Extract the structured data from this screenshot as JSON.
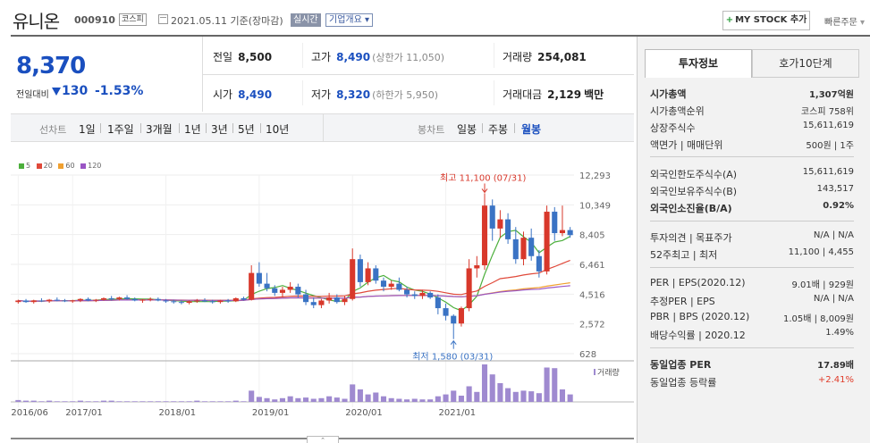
{
  "header": {
    "name": "유니온",
    "code": "000910",
    "market": "코스피",
    "date": "2021.05.11",
    "basis": "기준(장마감)",
    "realtime": "실시간",
    "overview": "기업개요",
    "mystock": "MY STOCK 추가",
    "quick_order": "빠른주문"
  },
  "price": {
    "current": "8,370",
    "change_label": "전일대비",
    "change_value": "130",
    "change_pct": "-1.53%"
  },
  "summary": {
    "prev_label": "전일",
    "prev": "8,500",
    "high_label": "고가",
    "high": "8,490",
    "high_limit": "(상한가 11,050)",
    "volume_label": "거래량",
    "volume": "254,081",
    "open_label": "시가",
    "open": "8,490",
    "low_label": "저가",
    "low": "8,320",
    "low_limit": "(하한가 5,950)",
    "amount_label": "거래대금",
    "amount": "2,129",
    "amount_unit": "백만"
  },
  "period": {
    "line_label": "선차트",
    "line_items": [
      "1일",
      "1주일",
      "3개월",
      "1년",
      "3년",
      "5년",
      "10년"
    ],
    "candle_label": "봉차트",
    "candle_items": [
      "일봉",
      "주봉",
      "월봉"
    ],
    "active": "월봉"
  },
  "chart_data": {
    "type": "candlestick",
    "interval": "monthly",
    "legend": [
      {
        "name": "5",
        "color": "#4caf3c"
      },
      {
        "name": "20",
        "color": "#e0493a"
      },
      {
        "name": "60",
        "color": "#f0a030"
      },
      {
        "name": "120",
        "color": "#9a55c4"
      }
    ],
    "y_ticks": [
      "12,293",
      "10,349",
      "8,405",
      "6,461",
      "4,516",
      "2,572",
      "628"
    ],
    "ylim": [
      628,
      12293
    ],
    "x_ticks": [
      "2016/06",
      "2017/01",
      "2018/01",
      "2019/01",
      "2020/01",
      "2021/01"
    ],
    "max_label": "최고 11,100 (07/31)",
    "min_label": "최저 1,580 (03/31)",
    "volume_label": "거래량",
    "colors": {
      "up": "#d8382b",
      "down": "#3a73c4",
      "volume": "#9f8ad0"
    },
    "candles": [
      [
        4000,
        4150,
        3900,
        4100
      ],
      [
        4100,
        4200,
        3950,
        4000
      ],
      [
        4000,
        4150,
        3900,
        4100
      ],
      [
        4100,
        4250,
        4000,
        4050
      ],
      [
        4050,
        4200,
        3950,
        4150
      ],
      [
        4150,
        4300,
        4050,
        4100
      ],
      [
        4100,
        4200,
        4000,
        4050
      ],
      [
        4050,
        4150,
        3950,
        4100
      ],
      [
        4100,
        4250,
        4000,
        4200
      ],
      [
        4200,
        4300,
        4050,
        4100
      ],
      [
        4100,
        4200,
        4000,
        4150
      ],
      [
        4150,
        4300,
        4100,
        4250
      ],
      [
        4250,
        4400,
        4100,
        4200
      ],
      [
        4200,
        4350,
        4100,
        4300
      ],
      [
        4300,
        4450,
        4150,
        4200
      ],
      [
        4200,
        4300,
        4050,
        4100
      ],
      [
        4100,
        4200,
        3950,
        4150
      ],
      [
        4150,
        4300,
        4050,
        4200
      ],
      [
        4200,
        4300,
        4050,
        4100
      ],
      [
        4100,
        4200,
        3950,
        4050
      ],
      [
        4050,
        4150,
        3900,
        4000
      ],
      [
        4000,
        4100,
        3850,
        3950
      ],
      [
        3950,
        4100,
        3850,
        4050
      ],
      [
        4050,
        4200,
        3950,
        4100
      ],
      [
        4100,
        4250,
        4000,
        4050
      ],
      [
        4050,
        4150,
        3900,
        4000
      ],
      [
        4000,
        4150,
        3900,
        4100
      ],
      [
        4100,
        4200,
        3950,
        4050
      ],
      [
        4050,
        4300,
        4000,
        4250
      ],
      [
        4250,
        4350,
        4100,
        4150
      ],
      [
        4150,
        6400,
        4100,
        5900
      ],
      [
        5900,
        6600,
        5000,
        5200
      ],
      [
        5200,
        5900,
        4700,
        4900
      ],
      [
        4900,
        5100,
        4400,
        4600
      ],
      [
        4600,
        5000,
        4300,
        4800
      ],
      [
        4800,
        5300,
        4600,
        5000
      ],
      [
        5000,
        5200,
        4300,
        4500
      ],
      [
        4500,
        4800,
        3800,
        4000
      ],
      [
        4000,
        4300,
        3600,
        3800
      ],
      [
        3800,
        4200,
        3600,
        4100
      ],
      [
        4100,
        4600,
        3900,
        4300
      ],
      [
        4300,
        4500,
        3900,
        4000
      ],
      [
        4000,
        4400,
        3800,
        4200
      ],
      [
        4200,
        7500,
        4100,
        6800
      ],
      [
        6800,
        7100,
        5000,
        5300
      ],
      [
        5300,
        6600,
        5100,
        6200
      ],
      [
        6200,
        6400,
        5200,
        5400
      ],
      [
        5400,
        5600,
        4700,
        5000
      ],
      [
        5000,
        5400,
        4800,
        5200
      ],
      [
        5200,
        5600,
        4700,
        4800
      ],
      [
        4800,
        5000,
        4300,
        4500
      ],
      [
        4500,
        4700,
        4200,
        4400
      ],
      [
        4400,
        4800,
        4200,
        4600
      ],
      [
        4600,
        4700,
        4200,
        4300
      ],
      [
        4300,
        4500,
        3200,
        3600
      ],
      [
        3600,
        3900,
        2800,
        3100
      ],
      [
        3100,
        3200,
        1580,
        2600
      ],
      [
        2600,
        3700,
        2400,
        3600
      ],
      [
        3600,
        6800,
        3400,
        6200
      ],
      [
        6200,
        7000,
        5600,
        6400
      ],
      [
        6400,
        11100,
        6100,
        10300
      ],
      [
        10300,
        10700,
        8000,
        8800
      ],
      [
        8800,
        10000,
        8200,
        9400
      ],
      [
        9400,
        9800,
        7800,
        8100
      ],
      [
        8100,
        8900,
        6500,
        6800
      ],
      [
        6800,
        8600,
        6400,
        8200
      ],
      [
        8200,
        8800,
        6700,
        7000
      ],
      [
        7000,
        7400,
        5600,
        6000
      ],
      [
        6000,
        10300,
        5800,
        9900
      ],
      [
        9900,
        10200,
        8000,
        8500
      ],
      [
        8500,
        10300,
        8300,
        8700
      ],
      [
        8700,
        8900,
        8200,
        8370
      ]
    ],
    "volumes": [
      3,
      2,
      2,
      1,
      2,
      1,
      1,
      1,
      2,
      1,
      1,
      2,
      2,
      1,
      1,
      1,
      1,
      1,
      1,
      1,
      1,
      1,
      1,
      2,
      1,
      1,
      1,
      1,
      2,
      1,
      18,
      8,
      6,
      4,
      6,
      9,
      6,
      7,
      5,
      6,
      9,
      7,
      5,
      28,
      20,
      12,
      15,
      9,
      6,
      5,
      4,
      5,
      4,
      4,
      9,
      12,
      18,
      10,
      25,
      16,
      60,
      44,
      30,
      22,
      16,
      18,
      17,
      14,
      55,
      54,
      20,
      12
    ]
  },
  "invest": {
    "tab_active": "투자정보",
    "tab_other": "호가10단계",
    "rows": [
      {
        "l": "시가총액",
        "r": "1,307억원"
      },
      {
        "l": "시가총액순위",
        "r": "코스피 758위"
      },
      {
        "l": "상장주식수",
        "r": "15,611,619"
      },
      {
        "l": "액면가 | 매매단위",
        "r": "500원 | 1주"
      },
      {
        "l": "외국인한도주식수(A)",
        "r": "15,611,619"
      },
      {
        "l": "외국인보유주식수(B)",
        "r": "143,517"
      },
      {
        "l": "외국인소진율(B/A)",
        "r": "0.92%"
      },
      {
        "l": "투자의견 | 목표주가",
        "r": "N/A | N/A"
      },
      {
        "l": "52주최고 | 최저",
        "r": "11,100 | 4,455"
      },
      {
        "l": "PER | EPS(2020.12)",
        "r": "9.01배 | 929원"
      },
      {
        "l": "추정PER | EPS",
        "r": "N/A | N/A"
      },
      {
        "l": "PBR | BPS (2020.12)",
        "r": "1.05배 | 8,009원"
      },
      {
        "l": "배당수익률 | 2020.12",
        "r": "1.49%"
      },
      {
        "l": "동일업종 PER",
        "r": "17.89배"
      },
      {
        "l": "동일업종 등락률",
        "r": "+2.41%"
      }
    ]
  }
}
